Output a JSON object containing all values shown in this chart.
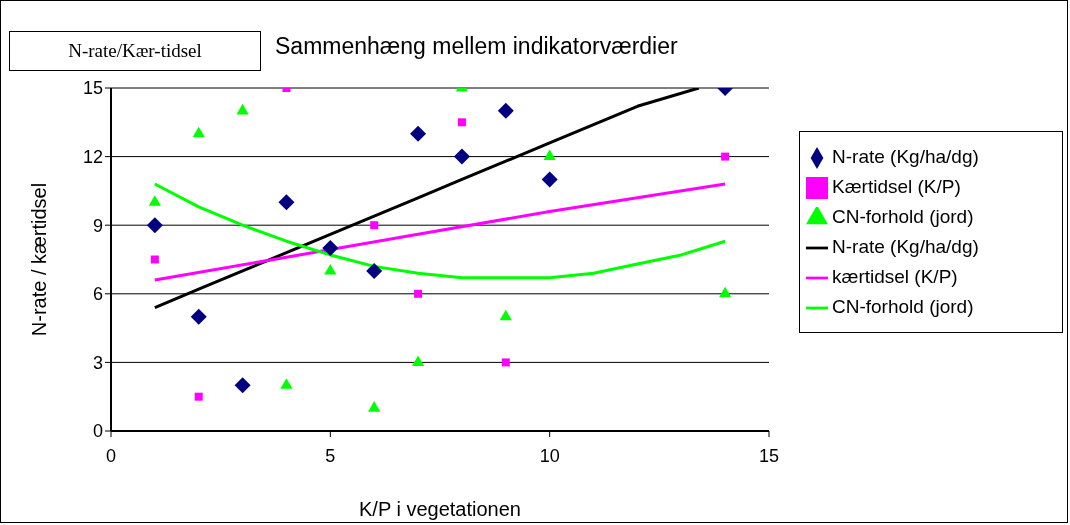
{
  "chart_data": {
    "type": "scatter",
    "title": "Sammenhæng mellem indikatorværdier",
    "xlabel": "K/P i vegetationen",
    "ylabel": "N-rate / kærtidsel",
    "annotations": [
      "N-rate/Kær-tidsel"
    ],
    "xlim": [
      0,
      15
    ],
    "xticks": [
      0,
      5,
      10,
      15
    ],
    "ylim": [
      0,
      15
    ],
    "yticks": [
      0,
      3,
      6,
      9,
      12,
      15
    ],
    "grid": "y",
    "legend": "right",
    "series": [
      {
        "name": "N-rate (Kg/ha/dg)",
        "marker": "diamond",
        "color": "#000080",
        "x": [
          1,
          2,
          3,
          4,
          5,
          6,
          7,
          8,
          9,
          10,
          14
        ],
        "values": [
          9,
          5,
          2,
          10,
          8,
          7,
          13,
          12,
          14,
          11,
          15
        ]
      },
      {
        "name": "Kærtidsel (K/P)",
        "marker": "square",
        "color": "#ff00ff",
        "x": [
          1,
          2,
          4,
          6,
          7,
          8,
          9,
          14
        ],
        "values": [
          7.5,
          1.5,
          15,
          9,
          6,
          13.5,
          3,
          12
        ]
      },
      {
        "name": "CN-forhold (jord)",
        "marker": "triangle",
        "color": "#00ff00",
        "x": [
          1,
          2,
          3,
          4,
          5,
          6,
          7,
          8,
          9,
          10,
          14
        ],
        "values": [
          10,
          13,
          14,
          2,
          7,
          1,
          3,
          15,
          5,
          12,
          6
        ]
      },
      {
        "name": "N-rate (Kg/ha/dg)",
        "type": "line",
        "color": "#000000",
        "x": [
          1,
          2,
          3,
          4,
          5,
          6,
          7,
          8,
          9,
          10,
          11,
          12,
          13.4
        ],
        "values": [
          5.4,
          6.2,
          7.0,
          7.8,
          8.6,
          9.4,
          10.2,
          11.0,
          11.8,
          12.6,
          13.4,
          14.2,
          15
        ]
      },
      {
        "name": "kærtidsel (K/P)",
        "type": "line",
        "color": "#ff00ff",
        "x": [
          1,
          4,
          7,
          10,
          14
        ],
        "values": [
          6.6,
          7.6,
          8.6,
          9.6,
          10.8
        ]
      },
      {
        "name": "CN-forhold (jord)",
        "type": "line",
        "color": "#00ff00",
        "x": [
          1,
          2,
          3,
          4,
          5,
          6,
          7,
          8,
          9,
          10,
          11,
          12,
          13,
          14
        ],
        "values": [
          10.8,
          9.8,
          9.0,
          8.3,
          7.7,
          7.2,
          6.9,
          6.7,
          6.7,
          6.7,
          6.9,
          7.3,
          7.7,
          8.3
        ]
      }
    ]
  }
}
